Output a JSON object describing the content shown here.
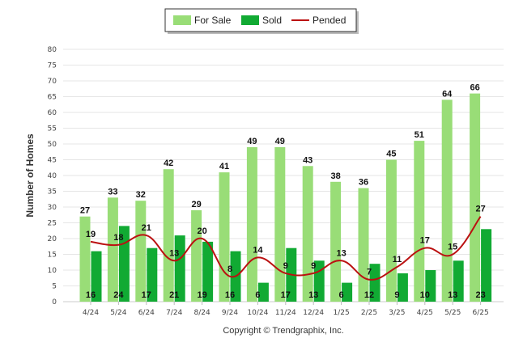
{
  "chart_data": {
    "type": "bar",
    "categories": [
      "4/24",
      "5/24",
      "6/24",
      "7/24",
      "8/24",
      "9/24",
      "10/24",
      "11/24",
      "12/24",
      "1/25",
      "2/25",
      "3/25",
      "4/25",
      "5/25",
      "6/25"
    ],
    "series": [
      {
        "name": "For Sale",
        "kind": "bar",
        "color": "#99dd77",
        "values": [
          27,
          33,
          32,
          42,
          29,
          41,
          49,
          49,
          43,
          38,
          36,
          45,
          51,
          64,
          66
        ]
      },
      {
        "name": "Sold",
        "kind": "bar",
        "color": "#11aa33",
        "values": [
          16,
          24,
          17,
          21,
          19,
          16,
          6,
          17,
          13,
          6,
          12,
          9,
          10,
          13,
          23
        ]
      },
      {
        "name": "Pended",
        "kind": "line",
        "color": "#bb1111",
        "values": [
          19,
          18,
          21,
          13,
          20,
          8,
          14,
          9,
          9,
          13,
          7,
          11,
          17,
          15,
          27
        ]
      }
    ],
    "ylabel": "Number of Homes",
    "ylim": [
      0,
      80
    ],
    "yticks": [
      0,
      5,
      10,
      15,
      20,
      25,
      30,
      35,
      40,
      45,
      50,
      55,
      60,
      65,
      70,
      75,
      80
    ],
    "grid": true,
    "legend_position": "top-center",
    "footer": "Copyright © Trendgraphix, Inc."
  }
}
